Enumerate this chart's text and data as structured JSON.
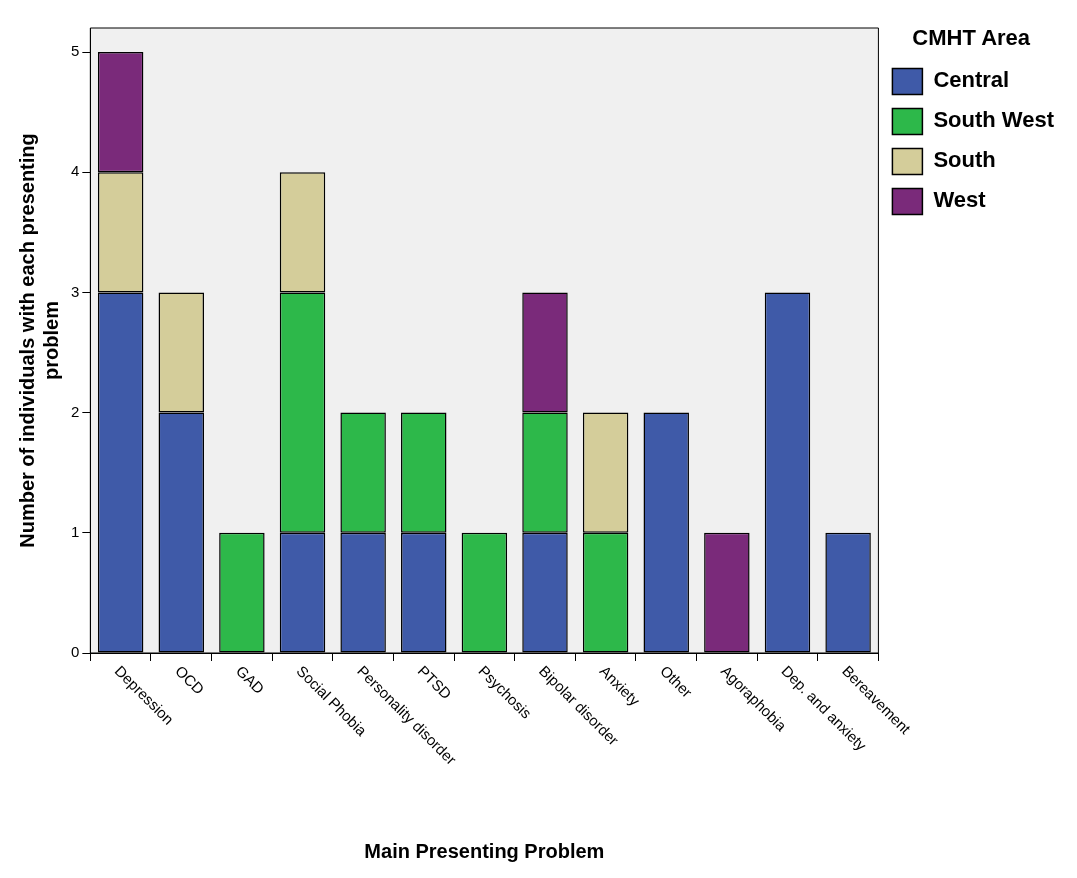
{
  "chart_data": {
    "type": "bar",
    "stacked": true,
    "xlabel": "Main Presenting Problem",
    "ylabel": "Number of individuals with each presenting problem",
    "legend_title": "CMHT Area",
    "legend": "top right",
    "grid": false,
    "categories": [
      "Depression",
      "OCD",
      "GAD",
      "Social Phobia",
      "Personality disorder",
      "PTSD",
      "Psychosis",
      "Bipolar disorder",
      "Anxiety",
      "Other",
      "Agoraphobia",
      "Dep. and anxiety",
      "Bereavement"
    ],
    "series": [
      {
        "name": "Central",
        "color": "#3f5aa8",
        "values": [
          3,
          2,
          0,
          1,
          1,
          1,
          0,
          1,
          0,
          2,
          0,
          3,
          1
        ]
      },
      {
        "name": "South West",
        "color": "#2db84a",
        "values": [
          0,
          0,
          1,
          2,
          1,
          1,
          1,
          1,
          1,
          0,
          0,
          0,
          0
        ]
      },
      {
        "name": "South",
        "color": "#d4cd9a",
        "values": [
          1,
          1,
          0,
          1,
          0,
          0,
          0,
          0,
          1,
          0,
          0,
          0,
          0
        ]
      },
      {
        "name": "West",
        "color": "#7a2a7a",
        "values": [
          1,
          0,
          0,
          0,
          0,
          0,
          0,
          1,
          0,
          0,
          1,
          0,
          0
        ]
      }
    ],
    "ylim": [
      0,
      5.2
    ],
    "yticks": [
      0,
      1,
      2,
      3,
      4,
      5
    ]
  }
}
